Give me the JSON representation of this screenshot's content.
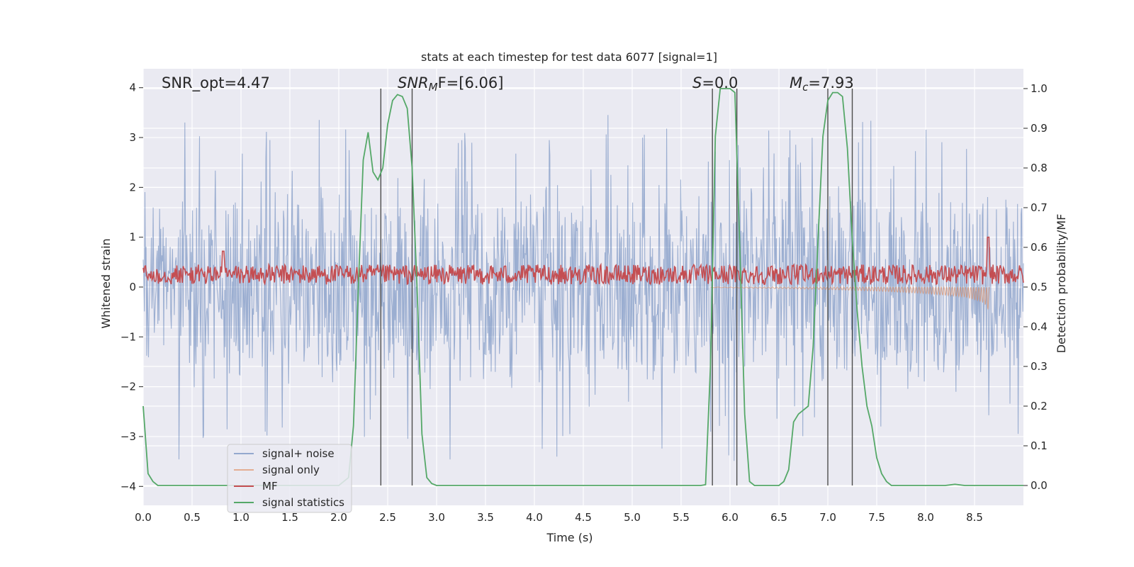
{
  "chart_data": {
    "type": "line",
    "title": "stats at each timestep for test data 6077 [signal=1]",
    "xlabel": "Time (s)",
    "ylabel_left": "Whitened strain",
    "ylabel_right": "Detection probability/MF",
    "xlim": [
      0,
      9.0
    ],
    "ylim_left": [
      -4.38,
      4.38
    ],
    "ylim_right": [
      -0.05,
      1.05
    ],
    "x_ticks": [
      "0.0",
      "0.5",
      "1.0",
      "1.5",
      "2.0",
      "2.5",
      "3.0",
      "3.5",
      "4.0",
      "4.5",
      "5.0",
      "5.5",
      "6.0",
      "6.5",
      "7.0",
      "7.5",
      "8.0",
      "8.5"
    ],
    "x_tick_values": [
      0,
      0.5,
      1,
      1.5,
      2,
      2.5,
      3,
      3.5,
      4,
      4.5,
      5,
      5.5,
      6,
      6.5,
      7,
      7.5,
      8,
      8.5
    ],
    "y_left_ticks": [
      "4",
      "3",
      "2",
      "1",
      "0",
      "−1",
      "−2",
      "−3",
      "−4"
    ],
    "y_left_tick_values": [
      4,
      3,
      2,
      1,
      0,
      -1,
      -2,
      -3,
      -4
    ],
    "y_right_ticks": [
      "1.0",
      "0.9",
      "0.8",
      "0.7",
      "0.6",
      "0.5",
      "0.4",
      "0.3",
      "0.2",
      "0.1",
      "0.0"
    ],
    "y_right_tick_values": [
      1.0,
      0.9,
      0.8,
      0.7,
      0.6,
      0.5,
      0.4,
      0.3,
      0.2,
      0.1,
      0.0
    ],
    "annotations": {
      "snr_opt": "SNR_opt=4.47",
      "snr_mf": "SNR",
      "snr_mf_sub": "M",
      "snr_mf_rest": "F=[6.06]",
      "s_label": "S",
      "s_rest": "=0.0",
      "mc_label": "M",
      "mc_sub": "c",
      "mc_rest": "=7.93"
    },
    "vertical_lines": [
      2.43,
      2.75,
      5.82,
      6.07,
      7.0,
      7.25
    ],
    "legend": [
      "signal+ noise",
      "signal only",
      "MF",
      "signal statistics"
    ],
    "series": [
      {
        "name": "signal statistics",
        "axis": "right",
        "x": [
          0.0,
          0.05,
          0.1,
          0.15,
          0.2,
          0.3,
          0.5,
          1.0,
          1.5,
          2.0,
          2.1,
          2.15,
          2.2,
          2.25,
          2.3,
          2.35,
          2.4,
          2.45,
          2.5,
          2.55,
          2.6,
          2.65,
          2.7,
          2.75,
          2.8,
          2.85,
          2.9,
          2.95,
          3.0,
          3.5,
          4.0,
          4.5,
          5.0,
          5.5,
          5.7,
          5.75,
          5.8,
          5.85,
          5.9,
          6.0,
          6.05,
          6.1,
          6.15,
          6.2,
          6.25,
          6.3,
          6.5,
          6.55,
          6.6,
          6.65,
          6.7,
          6.8,
          6.85,
          6.9,
          6.95,
          7.0,
          7.05,
          7.1,
          7.15,
          7.2,
          7.25,
          7.3,
          7.35,
          7.4,
          7.45,
          7.5,
          7.55,
          7.6,
          7.65,
          7.7,
          7.8,
          8.0,
          8.2,
          8.3,
          8.4,
          8.6,
          9.0
        ],
        "values": [
          0.2,
          0.03,
          0.01,
          0.0,
          0.0,
          0.0,
          0.0,
          0.0,
          0.0,
          0.0,
          0.02,
          0.15,
          0.5,
          0.82,
          0.89,
          0.79,
          0.77,
          0.8,
          0.91,
          0.97,
          0.985,
          0.98,
          0.95,
          0.8,
          0.5,
          0.13,
          0.02,
          0.005,
          0.0,
          0.0,
          0.0,
          0.0,
          0.0,
          0.0,
          0.0,
          0.002,
          0.3,
          0.88,
          1.0,
          1.0,
          0.99,
          0.6,
          0.18,
          0.01,
          0.0,
          0.0,
          0.0,
          0.01,
          0.04,
          0.16,
          0.18,
          0.2,
          0.35,
          0.62,
          0.88,
          0.97,
          0.99,
          0.99,
          0.98,
          0.85,
          0.62,
          0.44,
          0.3,
          0.2,
          0.15,
          0.07,
          0.03,
          0.01,
          0.0,
          0.0,
          0.0,
          0.0,
          0.0,
          0.003,
          0.0,
          0.0,
          0.0
        ]
      },
      {
        "name": "signal only",
        "axis": "left",
        "description_of_shape": "chirp growing from ~0 at 5.8 s to about -0.5 at 8.65 s",
        "x": [
          5.8,
          6.5,
          7.0,
          7.5,
          8.0,
          8.4,
          8.6,
          8.65
        ],
        "values": [
          -0.01,
          -0.03,
          -0.05,
          -0.08,
          -0.13,
          -0.2,
          -0.32,
          -0.5
        ]
      },
      {
        "name": "MF",
        "axis": "left",
        "baseline": 0.25,
        "amplitude": 0.2,
        "peaks": [
          {
            "x": 0.82,
            "y": 0.72
          },
          {
            "x": 8.64,
            "y": 1.0
          }
        ]
      },
      {
        "name": "signal+ noise",
        "axis": "left",
        "typical_range": [
          -2.0,
          2.0
        ],
        "max_spike": 3.5,
        "min_spike": -3.95
      }
    ]
  },
  "colors": {
    "background": "#eaeaf2",
    "grid": "#ffffff",
    "noise": "#4c72b0",
    "signal_only": "#dd8452",
    "mf": "#c44e52",
    "stats": "#55a868",
    "vline": "#4d4d4d"
  }
}
